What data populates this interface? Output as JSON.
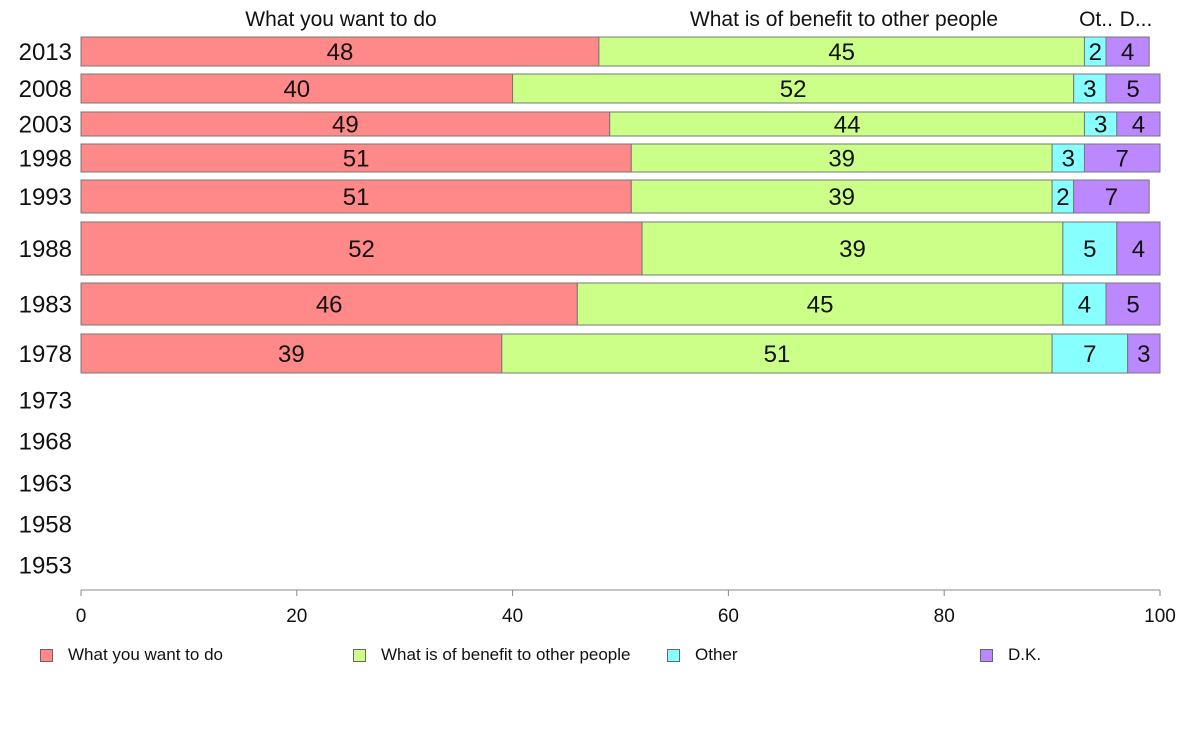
{
  "chart_data": {
    "type": "bar",
    "orientation": "horizontal",
    "stacked": true,
    "categories": [
      "2013",
      "2008",
      "2003",
      "1998",
      "1993",
      "1988",
      "1983",
      "1978",
      "1973",
      "1968",
      "1963",
      "1958",
      "1953"
    ],
    "series": [
      {
        "name": "What you want to do",
        "color": "#ff8888",
        "values": [
          48,
          40,
          49,
          51,
          51,
          52,
          46,
          39,
          null,
          null,
          null,
          null,
          null
        ]
      },
      {
        "name": "What is of benefit to other people",
        "color": "#ccff88",
        "values": [
          45,
          52,
          44,
          39,
          39,
          39,
          45,
          51,
          null,
          null,
          null,
          null,
          null
        ]
      },
      {
        "name": "Other",
        "color": "#88ffff",
        "values": [
          2,
          3,
          3,
          3,
          2,
          5,
          4,
          7,
          null,
          null,
          null,
          null,
          null
        ]
      },
      {
        "name": "D.K.",
        "color": "#bb88ff",
        "values": [
          4,
          5,
          4,
          7,
          7,
          4,
          5,
          3,
          null,
          null,
          null,
          null,
          null
        ]
      }
    ],
    "top_labels": [
      "What you want to do",
      "What is of benefit to other people",
      "Ot..",
      "D..."
    ],
    "xlim": [
      0,
      100
    ],
    "xticks": [
      "0",
      "20",
      "40",
      "60",
      "80",
      "100"
    ],
    "legend_position": "bottom",
    "grid": false
  }
}
